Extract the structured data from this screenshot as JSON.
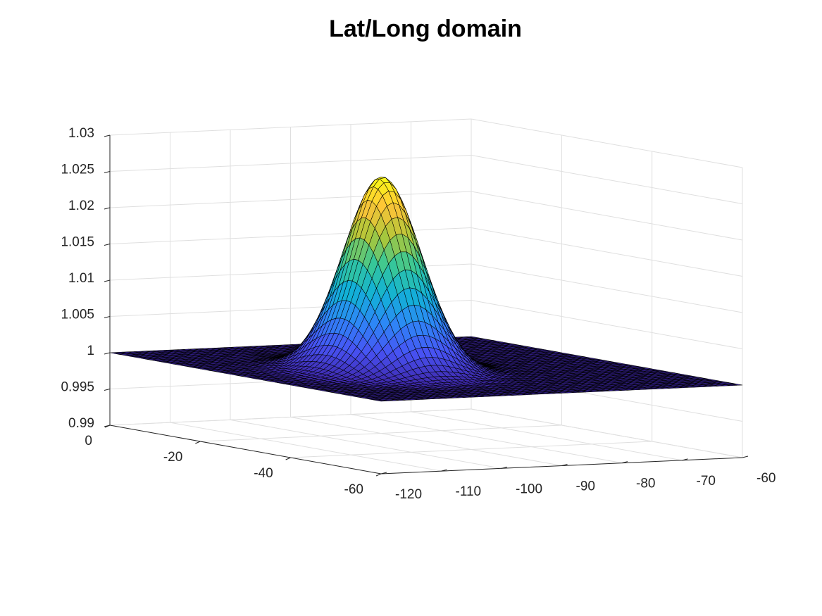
{
  "chart_data": {
    "type": "surface",
    "title": "Lat/Long domain",
    "xlabel": "",
    "ylabel": "",
    "zlabel": "",
    "grid": true,
    "colormap": "parula",
    "x_axis": {
      "label": "",
      "lim": [
        -60,
        0
      ],
      "ticks": [
        0,
        -20,
        -40,
        -60
      ],
      "tick_labels": [
        "0",
        "-20",
        "-40",
        "-60"
      ]
    },
    "y_axis": {
      "label": "",
      "lim": [
        -120,
        -60
      ],
      "ticks": [
        -120,
        -110,
        -100,
        -90,
        -80,
        -70,
        -60
      ],
      "tick_labels": [
        "-120",
        "-110",
        "-100",
        "-90",
        "-80",
        "-70",
        "-60"
      ]
    },
    "z_axis": {
      "label": "",
      "lim": [
        0.99,
        1.03
      ],
      "ticks": [
        0.99,
        0.995,
        1,
        1.005,
        1.01,
        1.015,
        1.02,
        1.025,
        1.03
      ],
      "tick_labels": [
        "0.99",
        "0.995",
        "1",
        "1.005",
        "1.01",
        "1.015",
        "1.02",
        "1.025",
        "1.03"
      ]
    },
    "surface": {
      "grid_size": [
        61,
        61
      ],
      "baseline": 1.0,
      "peak_value": 1.0265,
      "peak_center": {
        "lat": -29,
        "lon": -96
      },
      "bumps": [
        {
          "lat": -28,
          "lon": -97,
          "amplitude": 0.021
        },
        {
          "lat": -34,
          "lon": -99,
          "amplitude": 0.0175
        },
        {
          "lat": -25,
          "lon": -94,
          "amplitude": 0.0175
        },
        {
          "lat": -31,
          "lon": -94,
          "amplitude": 0.006
        }
      ]
    },
    "colors": {
      "flat_surface": "#3e26a8",
      "colormap_low": "#3e26a8",
      "colormap_high": "#f9fb15",
      "grid": "#dfdfdf",
      "axis": "#262626",
      "edges": "#000000"
    }
  }
}
